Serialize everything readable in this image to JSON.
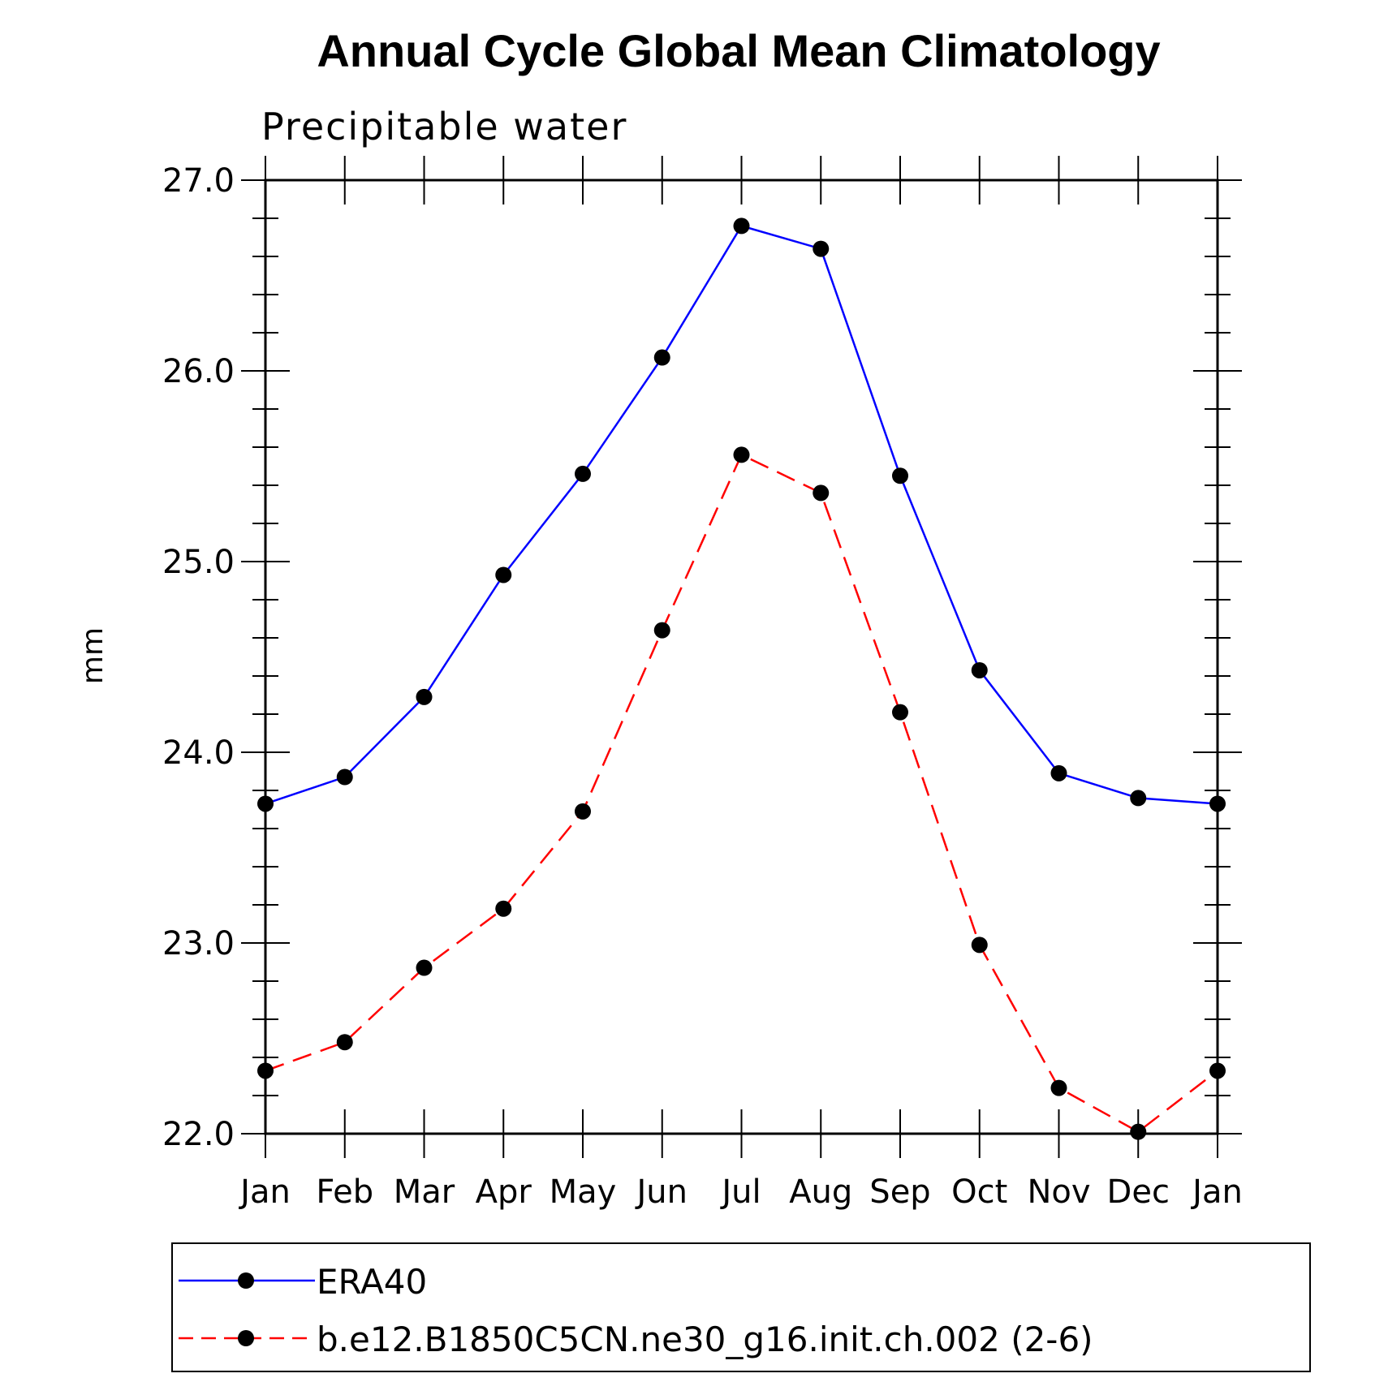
{
  "chart_data": {
    "type": "line",
    "title": "Annual Cycle Global Mean Climatology",
    "subtitle": "Precipitable water",
    "xlabel": "",
    "ylabel": "mm",
    "categories": [
      "Jan",
      "Feb",
      "Mar",
      "Apr",
      "May",
      "Jun",
      "Jul",
      "Aug",
      "Sep",
      "Oct",
      "Nov",
      "Dec",
      "Jan"
    ],
    "ylim": [
      22.0,
      27.0
    ],
    "yticks": [
      22.0,
      23.0,
      24.0,
      25.0,
      26.0,
      27.0
    ],
    "ytick_labels": [
      "22.0",
      "23.0",
      "24.0",
      "25.0",
      "26.0",
      "27.0"
    ],
    "grid": false,
    "legend_position": "bottom",
    "series": [
      {
        "name": "ERA40",
        "color": "#0000ff",
        "dash": "solid",
        "marker": "filled-circle",
        "values": [
          23.73,
          23.87,
          24.29,
          24.93,
          25.46,
          26.07,
          26.76,
          26.64,
          25.45,
          24.43,
          23.89,
          23.76,
          23.73
        ]
      },
      {
        "name": "b.e12.B1850C5CN.ne30_g16.init.ch.002 (2-6)",
        "color": "#ff0000",
        "dash": "dashed",
        "marker": "filled-circle",
        "values": [
          22.33,
          22.48,
          22.87,
          23.18,
          23.69,
          24.64,
          25.56,
          25.36,
          24.21,
          22.99,
          22.24,
          22.01,
          22.33
        ]
      }
    ]
  }
}
